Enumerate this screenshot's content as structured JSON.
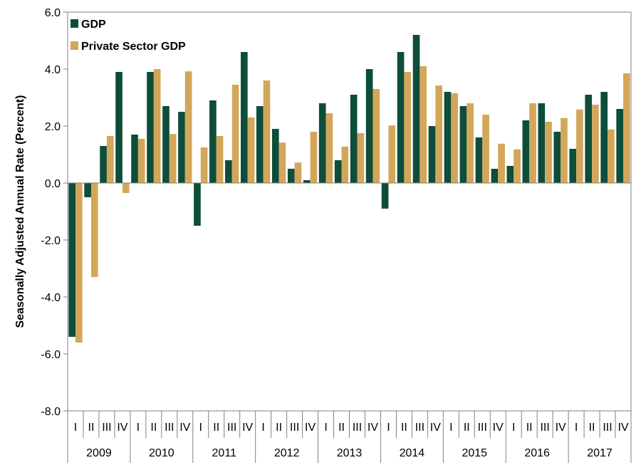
{
  "chart_data": {
    "type": "bar",
    "ylabel": "Seasonally Adjusted Annual Rate (Percent)",
    "ylim": [
      -8,
      6
    ],
    "yticks": [
      "6.0",
      "4.0",
      "2.0",
      "0.0",
      "-2.0",
      "-4.0",
      "-6.0",
      "-8.0"
    ],
    "ytick_values": [
      6,
      4,
      2,
      0,
      -2,
      -4,
      -6,
      -8
    ],
    "grid": false,
    "legend_position": "top-left",
    "years": [
      "2009",
      "2010",
      "2011",
      "2012",
      "2013",
      "2014",
      "2015",
      "2016",
      "2017"
    ],
    "quarters": [
      "I",
      "II",
      "III",
      "IV"
    ],
    "series": [
      {
        "name": "GDP",
        "color": "#0e4d3a",
        "values": [
          -5.4,
          -0.5,
          1.3,
          3.9,
          1.7,
          3.9,
          2.7,
          2.5,
          -1.5,
          2.9,
          0.8,
          4.6,
          2.7,
          1.9,
          0.5,
          0.1,
          2.8,
          0.8,
          3.1,
          4.0,
          -0.9,
          4.6,
          5.2,
          2.0,
          3.2,
          2.7,
          1.6,
          0.5,
          0.6,
          2.2,
          2.8,
          1.8,
          1.2,
          3.1,
          3.2,
          2.6
        ]
      },
      {
        "name": "Private Sector GDP",
        "color": "#d3a75a",
        "values": [
          -5.6,
          -3.3,
          1.65,
          -0.35,
          1.55,
          4.0,
          1.72,
          3.92,
          1.25,
          1.65,
          3.45,
          2.3,
          3.6,
          1.42,
          0.72,
          1.8,
          2.45,
          1.28,
          1.75,
          3.3,
          2.02,
          3.9,
          4.1,
          3.42,
          3.15,
          2.8,
          2.4,
          1.38,
          1.18,
          2.8,
          2.15,
          2.28,
          2.58,
          2.75,
          1.88,
          3.85
        ]
      }
    ]
  }
}
